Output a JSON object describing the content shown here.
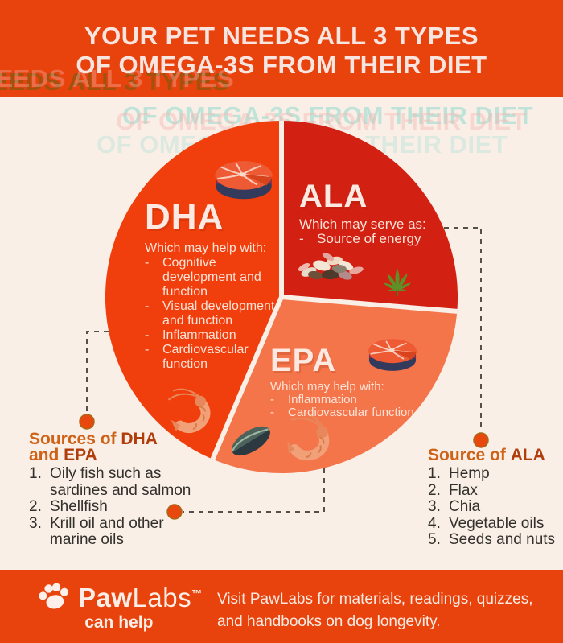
{
  "colors": {
    "band": "#E9430D",
    "background": "#F9EFE7",
    "dha": "#F03E0C",
    "ala": "#D22013",
    "epa": "#F5754B",
    "heading_orange": "#CE6217",
    "heading_strong": "#B23D0C",
    "connector": "#55504A",
    "dot": "#E8480E",
    "text_dark": "#33302B",
    "text_light": "#FFE2D6"
  },
  "header": {
    "title_line1": "YOUR PET NEEDS ALL 3 TYPES",
    "title_line2": "OF OMEGA-3S FROM THEIR DIET"
  },
  "pie": {
    "type": "pie",
    "segments": [
      {
        "label": "DHA",
        "intro": "Which may help with:",
        "points": [
          "Cognitive development and function",
          " Visual development and function",
          "Inflammation",
          "Cardiovascular function"
        ],
        "color": "#F03E0C",
        "approx_angle_deg": 156,
        "icons": [
          "salmon-steak",
          "shrimp"
        ]
      },
      {
        "label": "ALA",
        "intro": "Which may serve as:",
        "points": [
          "Source of energy"
        ],
        "color": "#D22013",
        "approx_angle_deg": 94,
        "icons": [
          "seeds",
          "hemp-leaf"
        ]
      },
      {
        "label": "EPA",
        "intro": "Which may help with:",
        "points": [
          "Inflammation",
          "Cardiovascular function"
        ],
        "color": "#F5754B",
        "approx_angle_deg": 110,
        "icons": [
          "salmon-steak",
          "mussel",
          "shrimp"
        ]
      }
    ]
  },
  "sources_dha_epa": {
    "title_prefix": "Sources of ",
    "title_strong1": "DHA",
    "title_mid": "and ",
    "title_strong2": "EPA",
    "items": [
      "Oily fish such as sardines and salmon",
      "Shellfish",
      "Krill oil and other marine oils"
    ]
  },
  "sources_ala": {
    "title_prefix": "Source of ",
    "title_strong": "ALA",
    "items": [
      "Hemp",
      "Flax",
      "Chia",
      "Vegetable oils",
      "Seeds and nuts"
    ]
  },
  "footer": {
    "brand_bold": "Paw",
    "brand_light": "Labs",
    "trademark": "™",
    "tagline": "can help",
    "message_line1": "Visit PawLabs for materials, readings, quizzes,",
    "message_line2": "and handbooks on dog longevity."
  },
  "list_markers": {
    "dash": "-"
  }
}
